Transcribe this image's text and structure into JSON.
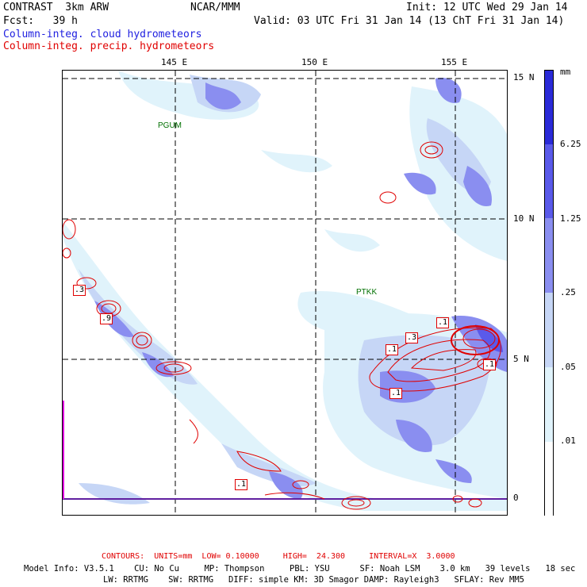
{
  "header": {
    "model": "CONTRAST  3km ARW",
    "org": "NCAR/MMM",
    "init": "Init: 12 UTC Wed 29 Jan 14",
    "fcst": "Fcst:   39 h",
    "valid": "Valid: 03 UTC Fri 31 Jan 14 (13 ChT Fri 31 Jan 14)",
    "field1": "Column-integ. cloud hydrometeors",
    "field2": "Column-integ. precip. hydrometeors"
  },
  "map": {
    "lon_labels": [
      "145 E",
      "150 E",
      "155 E"
    ],
    "lat_labels": [
      "15 N",
      "10 N",
      "5 N",
      "0"
    ],
    "stations": [
      "PGUM",
      "PTKK"
    ],
    "contour_labels": [
      ".3",
      ".9",
      ".1",
      ".1",
      ".3",
      ".1",
      ".1",
      ".1",
      ".1"
    ]
  },
  "legend": {
    "units": "mm",
    "levels": [
      "6.25",
      "1.25",
      ".25",
      ".05",
      ".01"
    ],
    "colors": [
      "#2a2ad8",
      "#5a5aea",
      "#8a8ef0",
      "#c6d6f6",
      "#e0f3fb",
      "#ffffff"
    ]
  },
  "footer": {
    "contours": "CONTOURS:  UNITS=mm  LOW= 0.10000     HIGH=  24.300     INTERVAL=X  3.0000",
    "line1": "Model Info: V3.5.1    CU: No Cu     MP: Thompson     PBL: YSU      SF: Noah LSM    3.0 km   39 levels   18 sec",
    "line2": "LW: RRTMG    SW: RRTMG   DIFF: simple KM: 3D Smagor DAMP: Rayleigh3   SFLAY: Rev MM5"
  },
  "colors": {
    "cloud": "#2020e0",
    "precip": "#e00000",
    "axis_magenta": "#e000e0"
  }
}
